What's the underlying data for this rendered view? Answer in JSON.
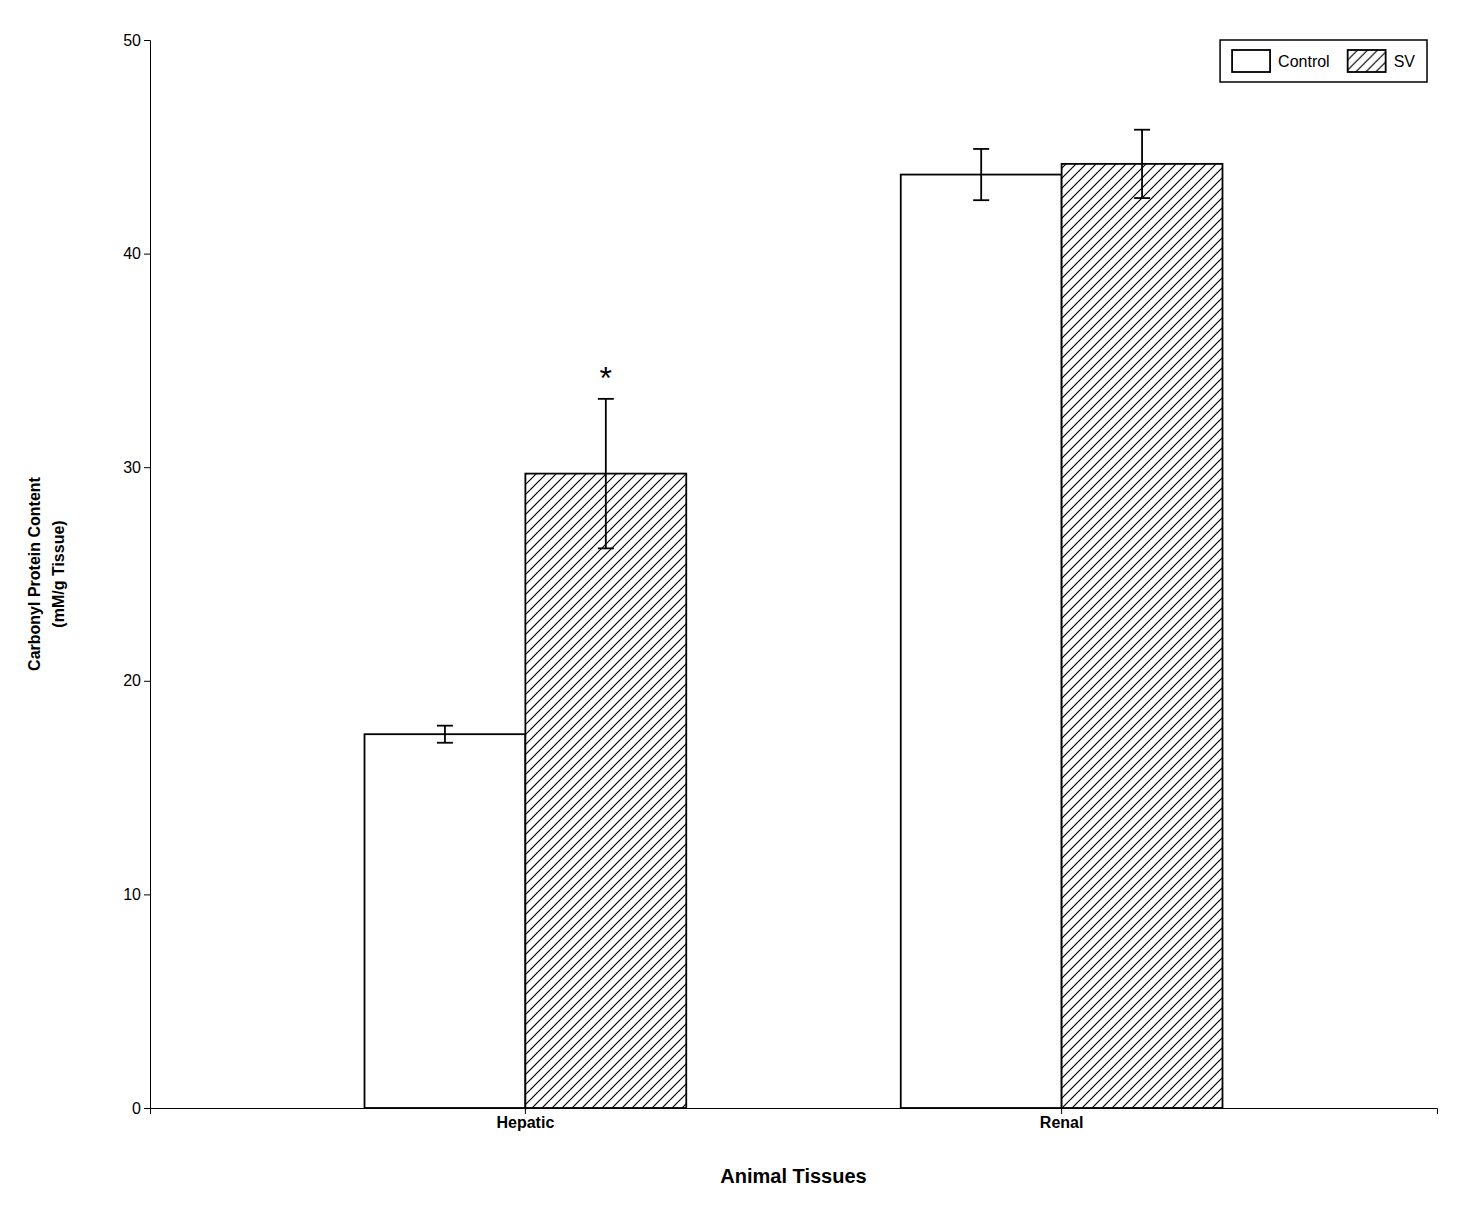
{
  "chart_data": {
    "type": "bar",
    "categories": [
      "Hepatic",
      "Renal"
    ],
    "series": [
      {
        "name": "Control",
        "color": "#ffffff",
        "values": [
          17.5,
          43.7
        ],
        "errors": [
          0.4,
          1.2
        ]
      },
      {
        "name": "SV",
        "color": "#ffffff",
        "values": [
          29.7,
          44.2
        ],
        "errors": [
          3.5,
          1.6
        ]
      }
    ],
    "xlabel": "Animal Tissues",
    "ylabel": [
      "Carbonyl Protein Content",
      "(mM/g Tissue)"
    ],
    "ylim": [
      0,
      50
    ],
    "yticks": [
      0,
      10,
      20,
      30,
      40,
      50
    ],
    "grid": false,
    "legend": "upper right",
    "annotations": [
      {
        "text": "*",
        "category": "Hepatic",
        "series": "SV"
      }
    ]
  }
}
